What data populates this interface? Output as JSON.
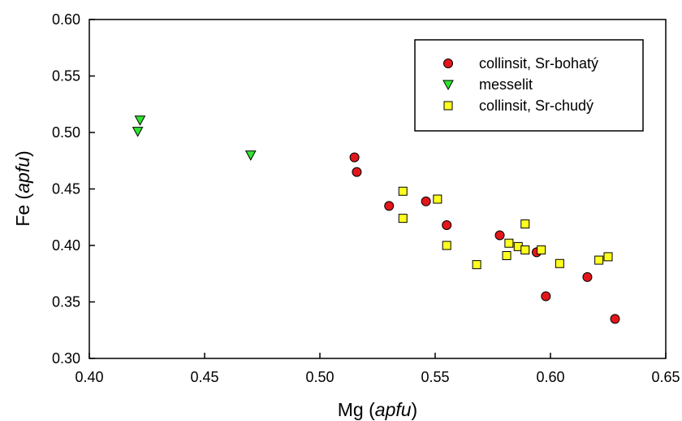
{
  "chart_data": {
    "type": "scatter",
    "title": "",
    "xlabel": "Mg",
    "xlabel_unit": "apfu",
    "ylabel": "Fe",
    "ylabel_unit": "apfu",
    "xlim": [
      0.4,
      0.65
    ],
    "ylim": [
      0.3,
      0.6
    ],
    "xticks": [
      "0.40",
      "0.45",
      "0.50",
      "0.55",
      "0.60",
      "0.65"
    ],
    "yticks": [
      "0.30",
      "0.35",
      "0.40",
      "0.45",
      "0.50",
      "0.55",
      "0.60"
    ],
    "grid": false,
    "legend_position": "top-right",
    "series": [
      {
        "name": "collinsit, Sr-bohatý",
        "marker": "circle",
        "color": "#e3161b",
        "points": [
          [
            0.515,
            0.478
          ],
          [
            0.516,
            0.465
          ],
          [
            0.53,
            0.435
          ],
          [
            0.546,
            0.439
          ],
          [
            0.555,
            0.418
          ],
          [
            0.578,
            0.409
          ],
          [
            0.594,
            0.394
          ],
          [
            0.598,
            0.355
          ],
          [
            0.616,
            0.372
          ],
          [
            0.628,
            0.335
          ]
        ]
      },
      {
        "name": "messelit",
        "marker": "triangle-down",
        "color": "#2ee62e",
        "points": [
          [
            0.422,
            0.511
          ],
          [
            0.421,
            0.501
          ],
          [
            0.47,
            0.48
          ]
        ]
      },
      {
        "name": "collinsit, Sr-chudý",
        "marker": "square",
        "color": "#ffff1f",
        "points": [
          [
            0.536,
            0.448
          ],
          [
            0.536,
            0.424
          ],
          [
            0.551,
            0.441
          ],
          [
            0.555,
            0.4
          ],
          [
            0.568,
            0.383
          ],
          [
            0.581,
            0.391
          ],
          [
            0.582,
            0.402
          ],
          [
            0.586,
            0.399
          ],
          [
            0.589,
            0.396
          ],
          [
            0.589,
            0.419
          ],
          [
            0.596,
            0.396
          ],
          [
            0.604,
            0.384
          ],
          [
            0.621,
            0.387
          ],
          [
            0.625,
            0.39
          ]
        ]
      }
    ]
  }
}
